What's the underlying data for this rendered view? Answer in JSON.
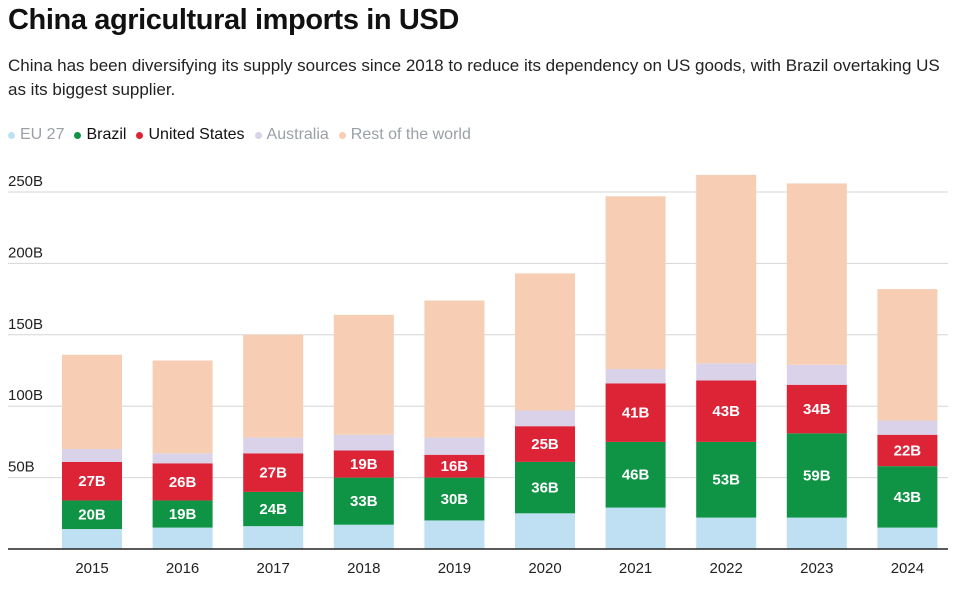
{
  "chart_data": {
    "type": "bar",
    "stacked": true,
    "title": "China agricultural imports in USD",
    "subtitle": "China has been diversifying its supply sources since 2018 to reduce its dependency on US goods, with Brazil overtaking US as its biggest supplier.",
    "xlabel": "",
    "ylabel": "",
    "ylim": [
      0,
      250
    ],
    "y_ticks": [
      {
        "value": 50,
        "label": "50B"
      },
      {
        "value": 100,
        "label": "100B"
      },
      {
        "value": 150,
        "label": "150B"
      },
      {
        "value": 200,
        "label": "200B"
      },
      {
        "value": 250,
        "label": "250B"
      }
    ],
    "grid": true,
    "legend_position": "top-left",
    "categories": [
      "2015",
      "2016",
      "2017",
      "2018",
      "2019",
      "2020",
      "2021",
      "2022",
      "2023",
      "2024"
    ],
    "series": [
      {
        "name": "EU 27",
        "color": "#bfe0f2",
        "values": [
          14,
          15,
          16,
          17,
          20,
          25,
          29,
          22,
          22,
          15
        ],
        "labels": [
          "",
          "",
          "",
          "",
          "",
          "",
          "",
          "",
          "",
          ""
        ]
      },
      {
        "name": "Brazil",
        "color": "#0f9445",
        "values": [
          20,
          19,
          24,
          33,
          30,
          36,
          46,
          53,
          59,
          43
        ],
        "labels": [
          "20B",
          "19B",
          "24B",
          "33B",
          "30B",
          "36B",
          "46B",
          "53B",
          "59B",
          "43B"
        ]
      },
      {
        "name": "United States",
        "color": "#dd2436",
        "values": [
          27,
          26,
          27,
          19,
          16,
          25,
          41,
          43,
          34,
          22
        ],
        "labels": [
          "27B",
          "26B",
          "27B",
          "19B",
          "16B",
          "25B",
          "41B",
          "43B",
          "34B",
          "22B"
        ]
      },
      {
        "name": "Australia",
        "color": "#d9d2e9",
        "values": [
          9,
          7,
          11,
          11,
          12,
          11,
          10,
          12,
          14,
          10
        ],
        "labels": [
          "",
          "",
          "",
          "",
          "",
          "",
          "",
          "",
          "",
          ""
        ]
      },
      {
        "name": "Rest of the world",
        "color": "#f7cdb3",
        "values": [
          66,
          65,
          72,
          84,
          96,
          96,
          121,
          132,
          127,
          92
        ],
        "labels": [
          "",
          "",
          "",
          "",
          "",
          "",
          "",
          "",
          "",
          ""
        ]
      }
    ],
    "legend": [
      {
        "label": "EU 27",
        "color": "#bfe0f2",
        "text_color": "#9aa0a6"
      },
      {
        "label": "Brazil",
        "color": "#0f9445",
        "text_color": "#111111"
      },
      {
        "label": "United States",
        "color": "#dd2436",
        "text_color": "#111111"
      },
      {
        "label": "Australia",
        "color": "#d9d2e9",
        "text_color": "#9aa0a6"
      },
      {
        "label": "Rest of the world",
        "color": "#f7cdb3",
        "text_color": "#9aa0a6"
      }
    ]
  }
}
